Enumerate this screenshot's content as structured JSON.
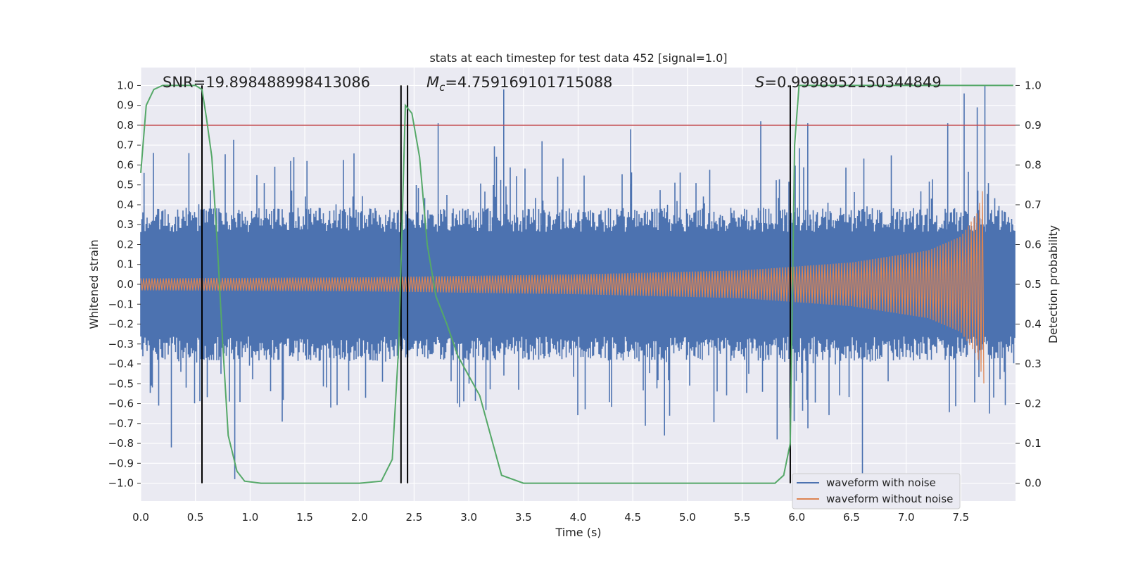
{
  "chart_data": {
    "type": "line",
    "title": "stats at each timestep for test data 452 [signal=1.0]",
    "xlabel": "Time (s)",
    "ylabel": "Whitened strain",
    "ylabel_right": "Detection probability",
    "xlim": [
      0.0,
      8.0
    ],
    "ylim": [
      -1.09,
      1.09
    ],
    "ylim_right": [
      -0.045,
      1.045
    ],
    "x_ticks": [
      "0.0",
      "0.5",
      "1.0",
      "1.5",
      "2.0",
      "2.5",
      "3.0",
      "3.5",
      "4.0",
      "4.5",
      "5.0",
      "5.5",
      "6.0",
      "6.5",
      "7.0",
      "7.5"
    ],
    "y_ticks": [
      "1.0",
      "0.9",
      "0.8",
      "0.7",
      "0.6",
      "0.5",
      "0.4",
      "0.3",
      "0.2",
      "0.1",
      "0.0",
      "−0.1",
      "−0.2",
      "−0.3",
      "−0.4",
      "−0.5",
      "−0.6",
      "−0.7",
      "−0.8",
      "−0.9",
      "−1.0"
    ],
    "y_ticks_right": [
      "1.0",
      "0.9",
      "0.8",
      "0.7",
      "0.6",
      "0.5",
      "0.4",
      "0.3",
      "0.2",
      "0.1",
      "0.0"
    ],
    "annotations": {
      "snr": "SNR=19.898488998413086",
      "mc_symbol": "M",
      "mc_sub": "c",
      "mc_value": "=4.759169101715088",
      "s_symbol": "S",
      "s_value": "=0.9998952150344849"
    },
    "threshold_line": {
      "y_right": 0.9,
      "color": "#c44e52"
    },
    "vertical_markers": [
      0.56,
      2.38,
      2.44,
      5.94
    ],
    "series": [
      {
        "name": "waveform with noise",
        "color": "#4c72b0",
        "description": "noise envelope approx ±0.35 with spikes up to ~1.0",
        "envelope": 0.35,
        "spike_peaks": [
          [
            0.03,
            0.56
          ],
          [
            0.28,
            -0.82
          ],
          [
            0.44,
            0.66
          ],
          [
            0.86,
            -0.98
          ],
          [
            1.52,
            0.62
          ],
          [
            2.38,
            0.69
          ],
          [
            2.72,
            0.81
          ],
          [
            3.32,
            0.98
          ],
          [
            3.67,
            0.72
          ],
          [
            4.48,
            0.78
          ],
          [
            4.79,
            -0.76
          ],
          [
            5.67,
            0.82
          ],
          [
            5.82,
            -0.78
          ],
          [
            6.1,
            0.81
          ],
          [
            6.6,
            -0.95
          ],
          [
            7.38,
            0.81
          ],
          [
            7.53,
            0.96
          ],
          [
            7.65,
            0.89
          ],
          [
            7.72,
            1.0
          ]
        ]
      },
      {
        "name": "waveform without noise",
        "color": "#dd8452",
        "description": "chirp, amplitude grows from ~0.03 to ~0.52, ends at t=7.72",
        "amplitude_points": [
          [
            0.0,
            0.03
          ],
          [
            2.0,
            0.035
          ],
          [
            4.0,
            0.05
          ],
          [
            5.5,
            0.07
          ],
          [
            6.5,
            0.11
          ],
          [
            7.2,
            0.17
          ],
          [
            7.5,
            0.24
          ],
          [
            7.65,
            0.36
          ],
          [
            7.72,
            0.52
          ]
        ],
        "end_time": 7.72
      },
      {
        "name": "detection probability",
        "axis": "right",
        "color": "#55a868",
        "x": [
          0.0,
          0.05,
          0.12,
          0.2,
          0.35,
          0.5,
          0.56,
          0.6,
          0.65,
          0.7,
          0.75,
          0.8,
          0.88,
          0.95,
          1.1,
          1.5,
          2.0,
          2.2,
          2.3,
          2.36,
          2.42,
          2.48,
          2.55,
          2.62,
          2.7,
          2.8,
          2.9,
          3.0,
          3.1,
          3.2,
          3.3,
          3.5,
          4.0,
          5.0,
          5.8,
          5.88,
          5.94,
          5.98,
          6.02,
          6.5,
          7.0,
          7.5,
          7.98
        ],
        "y": [
          0.78,
          0.95,
          0.99,
          1.0,
          1.0,
          1.0,
          0.99,
          0.92,
          0.82,
          0.6,
          0.35,
          0.12,
          0.03,
          0.005,
          0.0,
          0.0,
          0.0,
          0.005,
          0.06,
          0.35,
          0.95,
          0.93,
          0.82,
          0.6,
          0.47,
          0.4,
          0.32,
          0.27,
          0.22,
          0.12,
          0.02,
          0.0,
          0.0,
          0.0,
          0.0,
          0.02,
          0.1,
          0.85,
          1.0,
          1.0,
          1.0,
          1.0,
          1.0
        ]
      }
    ],
    "legend": {
      "placement": "lower-right",
      "entries": [
        "waveform with noise",
        "waveform without noise"
      ]
    }
  }
}
